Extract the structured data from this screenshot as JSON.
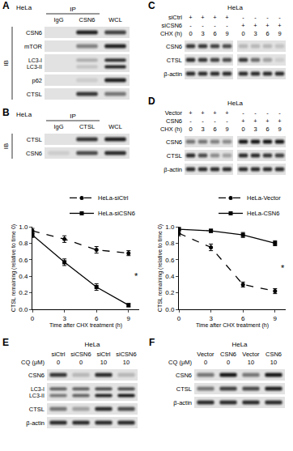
{
  "panels": [
    {
      "label": "A",
      "cell": "HeLa",
      "ip": {
        "text": "IP",
        "over": [
          "IgG",
          "CSN6"
        ]
      },
      "ib": "IB",
      "headers": [
        {
          "values": [
            "IgG",
            "CSN6",
            "WCL"
          ]
        }
      ],
      "rows": [
        {
          "labels": [
            "CSN6"
          ],
          "bands": [
            [
              0,
              0.9,
              0.75
            ]
          ]
        },
        {
          "labels": [
            "mTOR"
          ],
          "bands": [
            [
              0,
              0.45,
              0.9
            ]
          ]
        },
        {
          "labels": [
            "LC3-I",
            "LC3-II"
          ],
          "bands": [
            [
              [
                0,
                0
              ],
              [
                0.25,
                0.15
              ],
              [
                0.85,
                0.9
              ]
            ]
          ]
        },
        {
          "labels": [
            "p62"
          ],
          "bands": [
            [
              0,
              0.1,
              0.9
            ]
          ]
        },
        {
          "labels": [
            "CTSL"
          ],
          "bands": [
            [
              0,
              0.8,
              0.5
            ]
          ]
        }
      ]
    },
    {
      "label": "B",
      "cell": "HeLa",
      "ip": {
        "text": "IP",
        "over": [
          "IgG",
          "CTSL"
        ]
      },
      "ib": "IB",
      "headers": [
        {
          "values": [
            "IgG",
            "CTSL",
            "WCL"
          ]
        }
      ],
      "rows": [
        {
          "labels": [
            "CTSL"
          ],
          "bands": [
            [
              0,
              0.8,
              0.9
            ]
          ]
        },
        {
          "labels": [
            "CSN6"
          ],
          "bands": [
            [
              0.1,
              0.7,
              0.85
            ]
          ]
        }
      ]
    },
    {
      "label": "C",
      "cell": "HeLa",
      "headers": [
        {
          "label": "siCtrl",
          "values": [
            "+",
            "+",
            "+",
            "+",
            "-",
            "-",
            "-",
            "-"
          ]
        },
        {
          "label": "siCSN6",
          "values": [
            "-",
            "-",
            "-",
            "-",
            "+",
            "+",
            "+",
            "+"
          ]
        },
        {
          "label": "CHX (h)",
          "values": [
            "0",
            "3",
            "6",
            "9",
            "0",
            "3",
            "6",
            "9"
          ]
        }
      ],
      "rows": [
        {
          "labels": [
            "CSN6"
          ],
          "bands": [
            [
              0.8,
              0.8,
              0.75,
              0.7
            ],
            [
              0.2,
              0.2,
              0.2,
              0.15
            ]
          ]
        },
        {
          "labels": [
            "CTSL"
          ],
          "bands": [
            [
              0.85,
              0.8,
              0.75,
              0.7
            ],
            [
              0.8,
              0.55,
              0.3,
              0.1
            ]
          ]
        },
        {
          "labels": [
            "β-actin"
          ],
          "bands": [
            [
              0.85,
              0.85,
              0.85,
              0.85
            ],
            [
              0.85,
              0.85,
              0.85,
              0.85
            ]
          ]
        }
      ]
    },
    {
      "label": "D",
      "cell": "HeLa",
      "headers": [
        {
          "label": "Vector",
          "values": [
            "+",
            "+",
            "+",
            "+",
            "-",
            "-",
            "-",
            "-"
          ]
        },
        {
          "label": "CSN6",
          "values": [
            "-",
            "-",
            "-",
            "-",
            "+",
            "+",
            "+",
            "+"
          ]
        },
        {
          "label": "CHX (h)",
          "values": [
            "0",
            "3",
            "6",
            "9",
            "0",
            "3",
            "6",
            "9"
          ]
        }
      ],
      "rows": [
        {
          "labels": [
            "CSN6"
          ],
          "bands": [
            [
              0.5,
              0.5,
              0.45,
              0.4
            ],
            [
              0.95,
              0.95,
              0.95,
              0.95
            ]
          ]
        },
        {
          "labels": [
            "CTSL"
          ],
          "bands": [
            [
              0.85,
              0.7,
              0.4,
              0.3
            ],
            [
              0.85,
              0.85,
              0.8,
              0.75
            ]
          ]
        },
        {
          "labels": [
            "β-actin"
          ],
          "bands": [
            [
              0.85,
              0.85,
              0.85,
              0.85
            ],
            [
              0.85,
              0.85,
              0.85,
              0.85
            ]
          ]
        }
      ]
    },
    {
      "label": "E",
      "cell": "HeLa",
      "headers": [
        {
          "values": [
            "siCtrl",
            "siCSN6",
            "siCtrl",
            "siCSN6"
          ]
        },
        {
          "label": "CQ (μM)",
          "values": [
            "0",
            "0",
            "10",
            "10"
          ]
        }
      ],
      "rows": [
        {
          "labels": [
            "CSN6"
          ],
          "bands": [
            [
              0.8,
              0.2,
              0.85,
              0.2
            ]
          ]
        },
        {
          "labels": [
            "LC3-I",
            "LC3-II"
          ],
          "bands": [
            [
              [
                0.6,
                0.5
              ],
              [
                0.6,
                0.6
              ],
              [
                0.7,
                0.9
              ],
              [
                0.7,
                0.95
              ]
            ]
          ]
        },
        {
          "labels": [
            "CTSL"
          ],
          "bands": [
            [
              0.5,
              0.3,
              0.85,
              0.7
            ]
          ]
        },
        {
          "labels": [
            "β-actin"
          ],
          "bands": [
            [
              0.85,
              0.85,
              0.85,
              0.85
            ]
          ]
        }
      ]
    },
    {
      "label": "F",
      "cell": "HeLa",
      "headers": [
        {
          "values": [
            "Vector",
            "CSN6",
            "Vector",
            "CSN6"
          ]
        },
        {
          "label": "CQ (μM)",
          "values": [
            "0",
            "0",
            "10",
            "10"
          ]
        }
      ],
      "rows": [
        {
          "labels": [
            "CSN6"
          ],
          "bands": [
            [
              0.5,
              0.95,
              0.5,
              0.95
            ]
          ]
        },
        {
          "labels": [
            "CTSL"
          ],
          "bands": [
            [
              0.5,
              0.75,
              0.7,
              0.9
            ]
          ]
        },
        {
          "labels": [
            "β-actin"
          ],
          "bands": [
            [
              0.85,
              0.85,
              0.85,
              0.85
            ]
          ]
        }
      ]
    }
  ],
  "chart_data": [
    {
      "type": "line",
      "x": [
        0,
        3,
        6,
        9
      ],
      "xlim": [
        0,
        10
      ],
      "xticks": [
        0,
        3,
        6,
        9
      ],
      "ylim": [
        0,
        1
      ],
      "yticks": [
        {
          "value": 0,
          "label": "0.0"
        },
        {
          "value": 0.2,
          "label": "0.2"
        },
        {
          "value": 0.4,
          "label": "0.4"
        },
        {
          "value": 0.6,
          "label": "0.6"
        },
        {
          "value": 0.8,
          "label": "0.8"
        },
        {
          "value": 1,
          "label": "1.0"
        }
      ],
      "x_label": "Time after CHX treatment (h)",
      "y_label": "CTSL remaining (relative to time 0)",
      "legend": "top",
      "grid": false,
      "series": [
        {
          "name": "HeLa-siCtrl",
          "color": "#000000",
          "marker": "circle",
          "line_style": "dashed",
          "values": [
            0.95,
            0.85,
            0.72,
            0.68
          ],
          "errors": [
            0.03,
            0.04,
            0.04,
            0.03
          ]
        },
        {
          "name": "HeLa-siCSN6",
          "color": "#000000",
          "marker": "square",
          "line_style": "solid",
          "values": [
            0.9,
            0.57,
            0.27,
            0.05
          ],
          "errors": [
            0.03,
            0.04,
            0.04,
            0.02
          ]
        }
      ],
      "annotations": [
        {
          "text": "*",
          "x": 9.4,
          "y": 0.4
        }
      ]
    },
    {
      "type": "line",
      "x": [
        0,
        3,
        6,
        9
      ],
      "xlim": [
        0,
        10
      ],
      "xticks": [
        0,
        3,
        6,
        9
      ],
      "ylim": [
        0,
        1
      ],
      "yticks": [
        {
          "value": 0,
          "label": "0.0"
        },
        {
          "value": 0.2,
          "label": "0.2"
        },
        {
          "value": 0.4,
          "label": "0.4"
        },
        {
          "value": 0.6,
          "label": "0.6"
        },
        {
          "value": 0.8,
          "label": "0.8"
        },
        {
          "value": 1,
          "label": "1.0"
        }
      ],
      "x_label": "Time after CHX treatment (h)",
      "y_label": "CTSL remaining (relative to time 0)",
      "legend": "top",
      "grid": false,
      "series": [
        {
          "name": "HeLa-Vector",
          "color": "#000000",
          "marker": "circle",
          "line_style": "dashed",
          "values": [
            0.92,
            0.75,
            0.3,
            0.22
          ],
          "errors": [
            0.03,
            0.04,
            0.03,
            0.03
          ]
        },
        {
          "name": "HeLa-CSN6",
          "color": "#000000",
          "marker": "square",
          "line_style": "solid",
          "values": [
            0.97,
            0.95,
            0.9,
            0.8
          ],
          "errors": [
            0.02,
            0.02,
            0.03,
            0.03
          ]
        }
      ],
      "annotations": [
        {
          "text": "*",
          "x": 9.4,
          "y": 0.5
        }
      ]
    }
  ]
}
